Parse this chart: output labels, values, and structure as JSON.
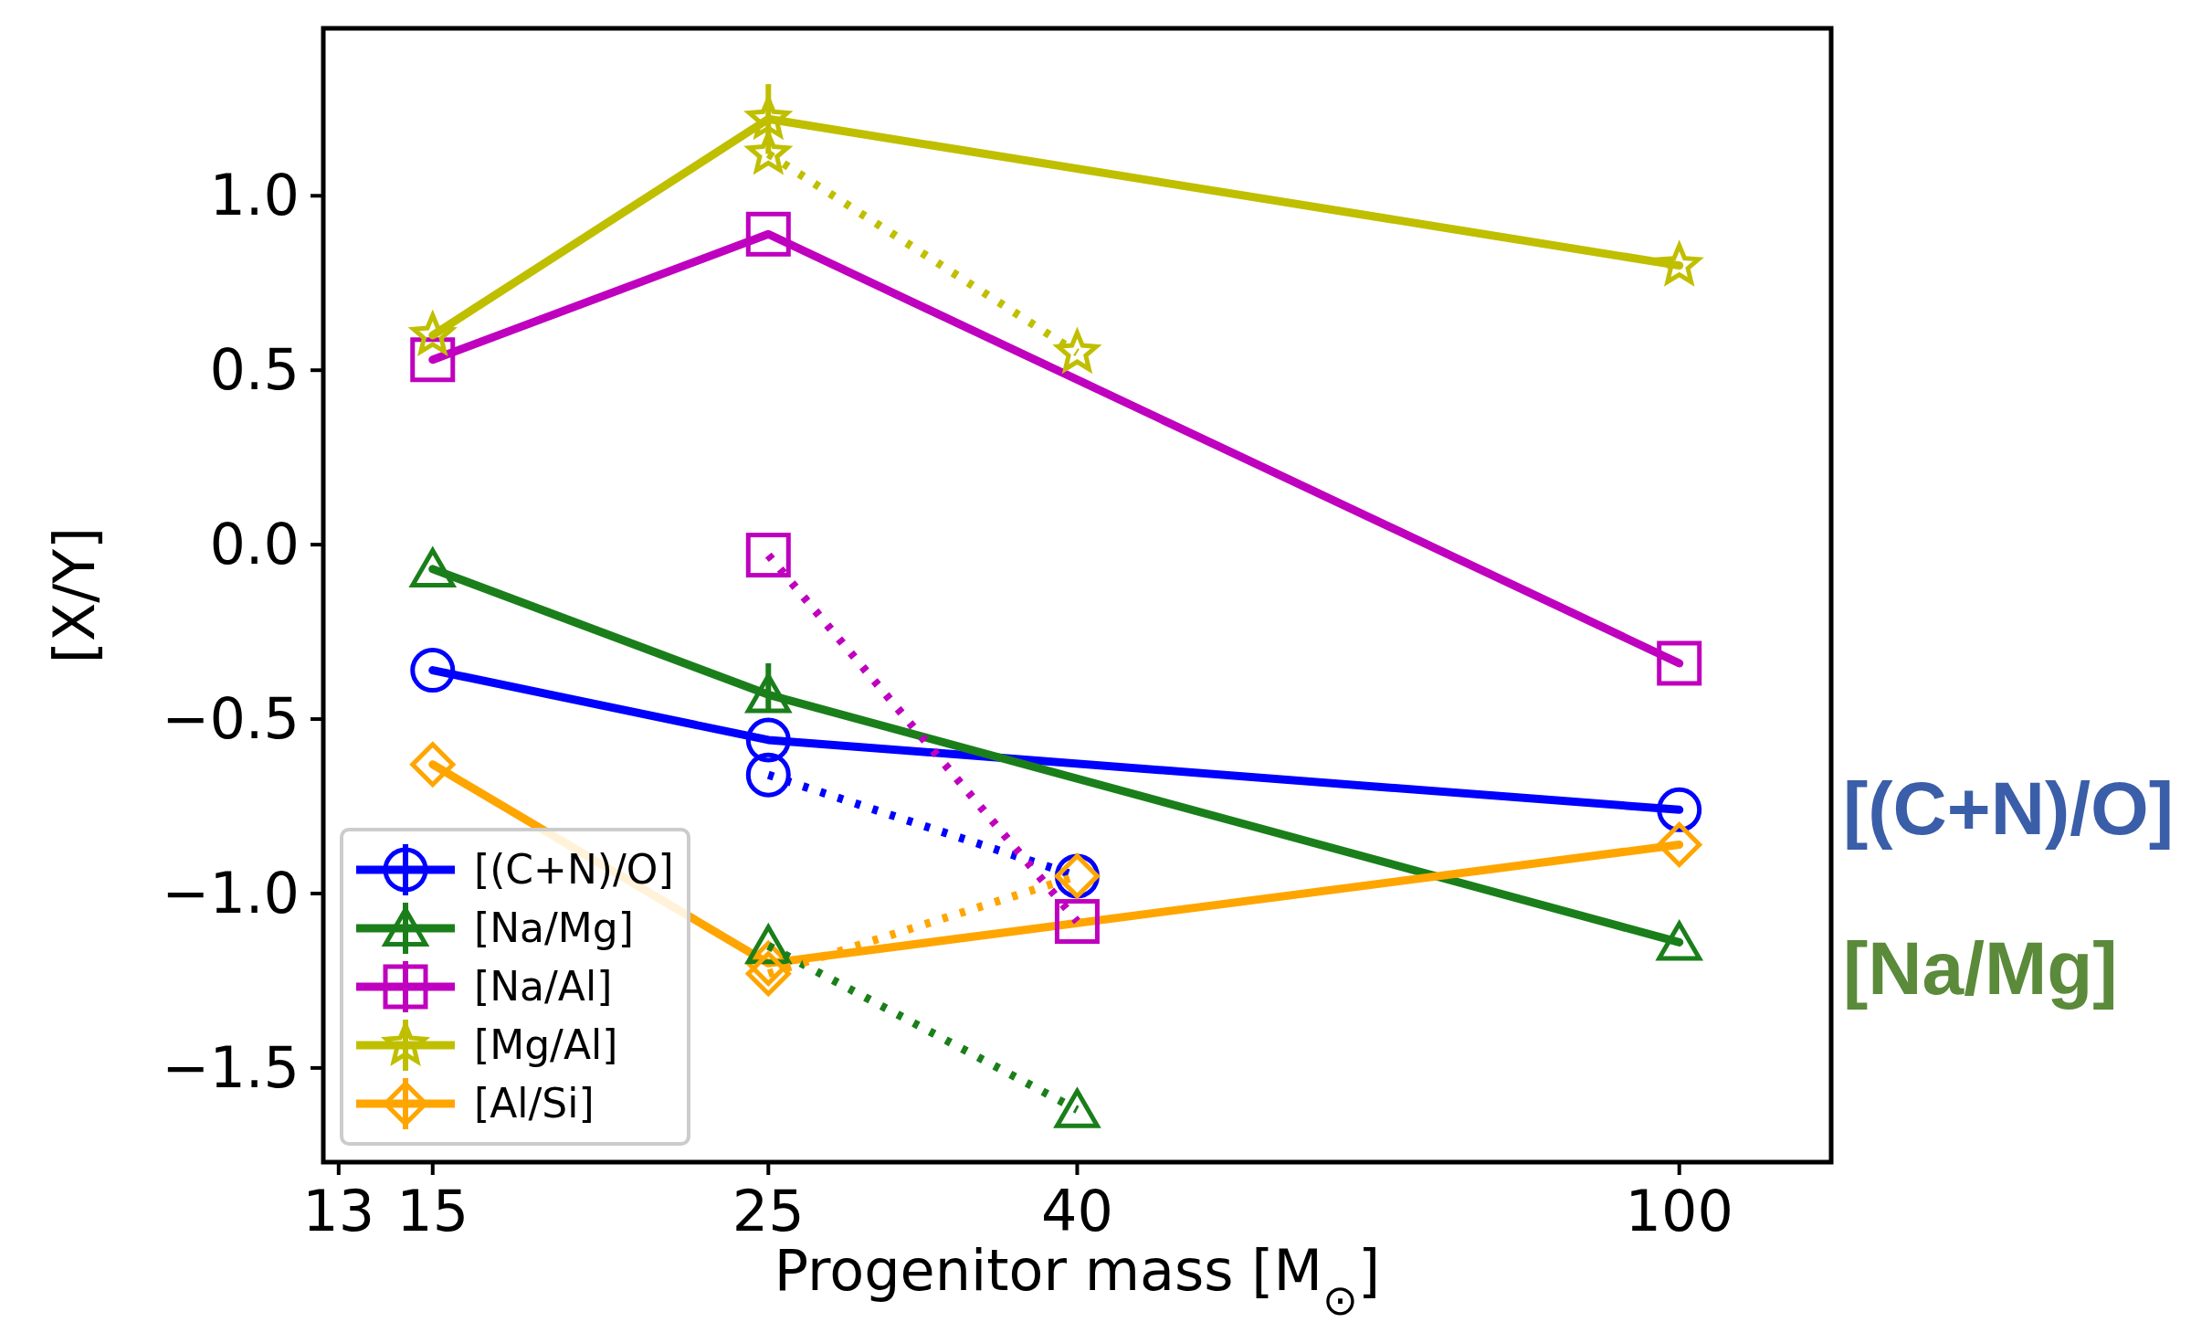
{
  "chart_data": {
    "type": "line",
    "xlabel": "Progenitor mass [M$_{⊙}$]",
    "ylabel": "[X/Y]",
    "log": "x",
    "xlim": [
      12.7,
      126
    ],
    "xticks": [
      13,
      15,
      25,
      40,
      100
    ],
    "ylim": [
      -1.77,
      1.48
    ],
    "yticks": [
      {
        "value": -1.5,
        "label": "−1.5"
      },
      {
        "value": -1.0,
        "label": "−1.0"
      },
      {
        "value": -0.5,
        "label": "−0.5"
      },
      {
        "value": 0.0,
        "label": "0.0"
      },
      {
        "value": 0.5,
        "label": "0.5"
      },
      {
        "value": 1.0,
        "label": "1.0"
      }
    ],
    "legend": "bottom left",
    "grid": false,
    "series": [
      {
        "name": "[(C+N)/O]",
        "color": "#0000ff",
        "marker": "circle",
        "line_style": "solid",
        "x": [
          15,
          25,
          100
        ],
        "values": [
          -0.36,
          -0.56,
          -0.76
        ]
      },
      {
        "name": "[Na/Mg]",
        "color": "#1a7f1a",
        "marker": "triangle",
        "line_style": "solid",
        "x": [
          15,
          25,
          100
        ],
        "values": [
          -0.07,
          -0.43,
          -1.14
        ],
        "errors": [
          null,
          [
            -0.48,
            -0.34
          ],
          null
        ]
      },
      {
        "name": "[Na/Al]",
        "color": "#bf00bf",
        "marker": "square",
        "line_style": "solid",
        "x": [
          15,
          25,
          100
        ],
        "values": [
          0.53,
          0.89,
          -0.34
        ]
      },
      {
        "name": "[Mg/Al]",
        "color": "#bfbf00",
        "marker": "star",
        "line_style": "solid",
        "x": [
          15,
          25,
          100
        ],
        "values": [
          0.6,
          1.22,
          0.8
        ],
        "errors": [
          null,
          [
            1.12,
            1.32
          ],
          null
        ]
      },
      {
        "name": "[Al/Si]",
        "color": "#ffa500",
        "marker": "diamond",
        "line_style": "solid",
        "x": [
          15,
          25,
          100
        ],
        "values": [
          -0.63,
          -1.2,
          -0.86
        ]
      },
      {
        "color": "#0000ff",
        "marker": "circle",
        "line_style": "dotted",
        "x": [
          25,
          40
        ],
        "values": [
          -0.66,
          -0.95
        ]
      },
      {
        "color": "#1a7f1a",
        "marker": "triangle",
        "line_style": "dotted",
        "x": [
          25,
          40
        ],
        "values": [
          -1.15,
          -1.62
        ]
      },
      {
        "color": "#bf00bf",
        "marker": "square",
        "line_style": "dotted",
        "x": [
          25,
          40
        ],
        "values": [
          -0.03,
          -1.08
        ]
      },
      {
        "color": "#bfbf00",
        "marker": "star",
        "line_style": "dotted",
        "x": [
          25,
          40
        ],
        "values": [
          1.12,
          0.55
        ]
      },
      {
        "color": "#ffa500",
        "marker": "diamond",
        "line_style": "dotted",
        "x": [
          25,
          40
        ],
        "values": [
          -1.23,
          -0.95
        ]
      }
    ],
    "annotations": [
      "[(C+N)/O]",
      "[Na/Mg]"
    ]
  }
}
